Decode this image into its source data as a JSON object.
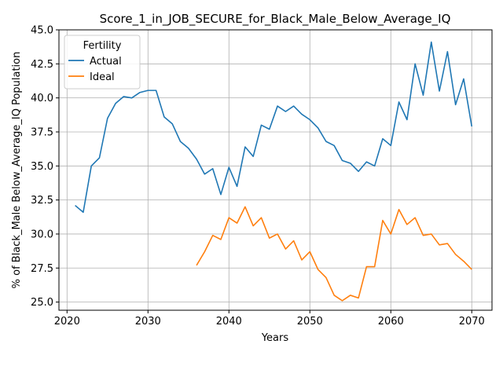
{
  "chart_data": {
    "type": "line",
    "title": "Score_1_in_JOB_SECURE_for_Black_Male_Below_Average_IQ",
    "xlabel": "Years",
    "ylabel": "% of Black_Male Below_Average_IQ Population",
    "xlim": [
      2019,
      2072.5
    ],
    "ylim": [
      24.4,
      45.0
    ],
    "xticks": [
      2020,
      2030,
      2040,
      2050,
      2060,
      2070
    ],
    "yticks": [
      "25.0",
      "27.5",
      "30.0",
      "32.5",
      "35.0",
      "37.5",
      "40.0",
      "42.5",
      "45.0"
    ],
    "grid": true,
    "legend": {
      "title": "Fertility",
      "placement": "top-left"
    },
    "series": [
      {
        "name": "Actual",
        "color": "#1f77b4",
        "x": [
          2021,
          2022,
          2023,
          2024,
          2025,
          2026,
          2027,
          2028,
          2029,
          2030,
          2031,
          2032,
          2033,
          2034,
          2035,
          2036,
          2037,
          2038,
          2039,
          2040,
          2041,
          2042,
          2043,
          2044,
          2045,
          2046,
          2047,
          2048,
          2049,
          2050,
          2051,
          2052,
          2053,
          2054,
          2055,
          2056,
          2057,
          2058,
          2059,
          2060,
          2061,
          2062,
          2063,
          2064,
          2065,
          2066,
          2067,
          2068,
          2069,
          2070
        ],
        "values": [
          32.1,
          31.6,
          35.0,
          35.6,
          38.5,
          39.6,
          40.1,
          40.0,
          40.4,
          40.55,
          40.55,
          38.6,
          38.1,
          36.8,
          36.3,
          35.5,
          34.4,
          34.8,
          32.9,
          34.9,
          33.5,
          36.4,
          35.7,
          38.0,
          37.7,
          39.4,
          39.0,
          39.4,
          38.8,
          38.4,
          37.8,
          36.8,
          36.5,
          35.4,
          35.2,
          34.6,
          35.3,
          35.0,
          37.0,
          36.5,
          39.7,
          38.4,
          42.5,
          40.2,
          44.1,
          40.5,
          43.4,
          39.5,
          41.4,
          37.9
        ]
      },
      {
        "name": "Ideal",
        "color": "#ff7f0e",
        "x": [
          2036,
          2037,
          2038,
          2039,
          2040,
          2041,
          2042,
          2043,
          2044,
          2045,
          2046,
          2047,
          2048,
          2049,
          2050,
          2051,
          2052,
          2053,
          2054,
          2055,
          2056,
          2057,
          2058,
          2059,
          2060,
          2061,
          2062,
          2063,
          2064,
          2065,
          2066,
          2067,
          2068,
          2069,
          2070
        ],
        "values": [
          27.7,
          28.7,
          29.9,
          29.6,
          31.2,
          30.8,
          32.0,
          30.6,
          31.2,
          29.7,
          30.0,
          28.9,
          29.5,
          28.1,
          28.7,
          27.4,
          26.8,
          25.5,
          25.1,
          25.5,
          25.3,
          27.6,
          27.6,
          31.0,
          30.0,
          31.8,
          30.7,
          31.2,
          29.9,
          30.0,
          29.2,
          29.3,
          28.5,
          28.0,
          27.4
        ]
      }
    ]
  }
}
